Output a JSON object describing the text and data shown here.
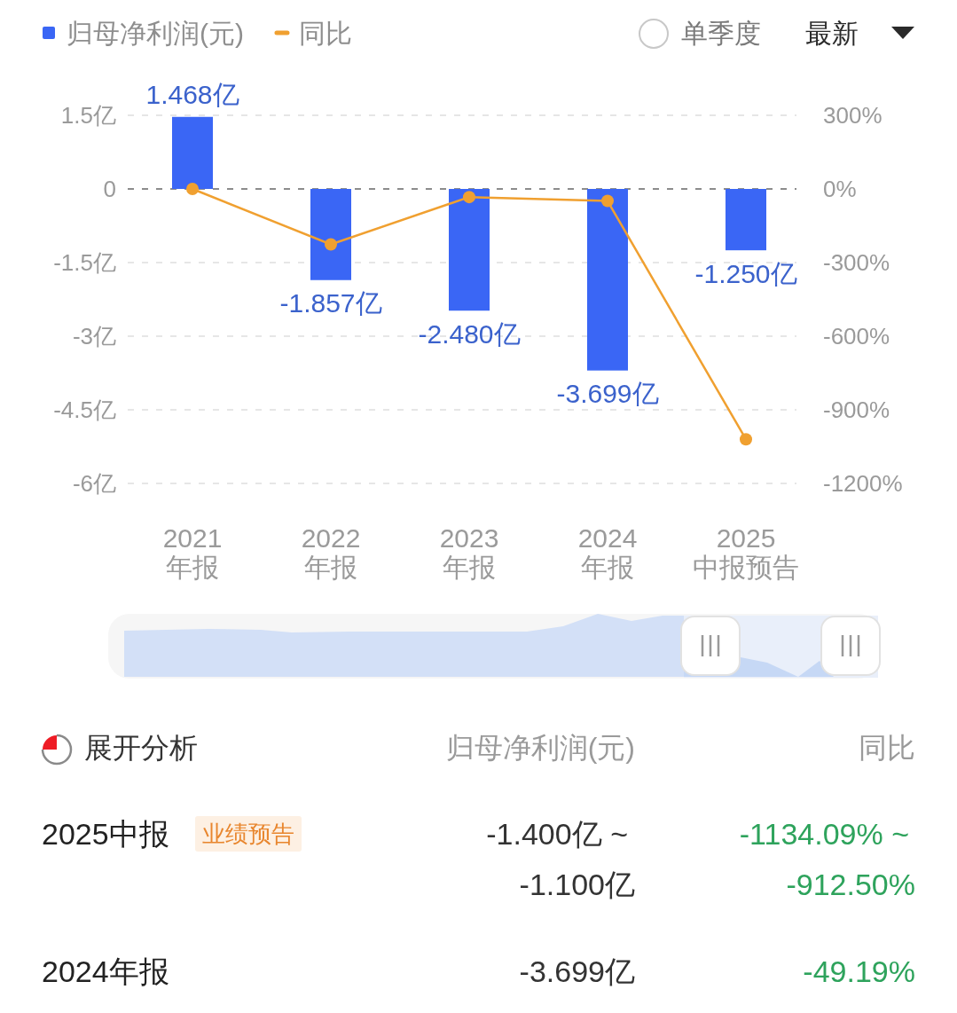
{
  "chart_data": [
    {
      "type": "bar",
      "legend": "top left",
      "grid": "y",
      "categories": [
        "2021\n年报",
        "2022\n年报",
        "2023\n年报",
        "2024\n年报",
        "2025\n中报预告"
      ],
      "series": [
        {
          "name": "归母净利润(元)",
          "type": "bar",
          "color": "#3a66f5",
          "values": [
            1.468,
            -1.857,
            -2.48,
            -3.699,
            -1.25
          ],
          "value_labels": [
            "1.468亿",
            "-1.857亿",
            "-2.480亿",
            "-3.699亿",
            "-1.250亿"
          ]
        },
        {
          "name": "同比",
          "type": "line",
          "axis": "y2",
          "color": "#f0a030",
          "marker": "circle",
          "values": [
            0,
            -226,
            -33,
            -49,
            -1020
          ]
        }
      ],
      "ylim": [
        -6,
        1.5
      ],
      "yticks": [
        {
          "value": -6,
          "label": "-6亿"
        },
        {
          "value": -4.5,
          "label": "-4.5亿"
        },
        {
          "value": -3,
          "label": "-3亿"
        },
        {
          "value": -1.5,
          "label": "-1.5亿"
        },
        0,
        {
          "value": 1.5,
          "label": "1.5亿"
        }
      ],
      "y2lim": [
        -1200,
        300
      ],
      "y2ticks": [
        {
          "value": -1200,
          "label": "-1200%"
        },
        {
          "value": -900,
          "label": "-900%"
        },
        {
          "value": -600,
          "label": "-600%"
        },
        {
          "value": -300,
          "label": "-300%"
        },
        {
          "value": 0,
          "label": "0%"
        },
        {
          "value": 300,
          "label": "300%"
        }
      ],
      "ref_lines": [
        {
          "axis": "y",
          "value": 0,
          "color": "#8c8c8c",
          "line_style": "dashed"
        }
      ],
      "annotations": [
        "单季度",
        "最新"
      ]
    },
    {
      "type": "other",
      "title": "展开分析",
      "annotations": [
        "归母净利润(元)",
        "同比",
        "2025中报",
        "业绩预告",
        "-1.400亿 ~",
        "-1.100亿",
        "-1134.09% ~",
        "-912.50%",
        "2024年报",
        "-3.699亿",
        "-49.19%"
      ]
    }
  ]
}
